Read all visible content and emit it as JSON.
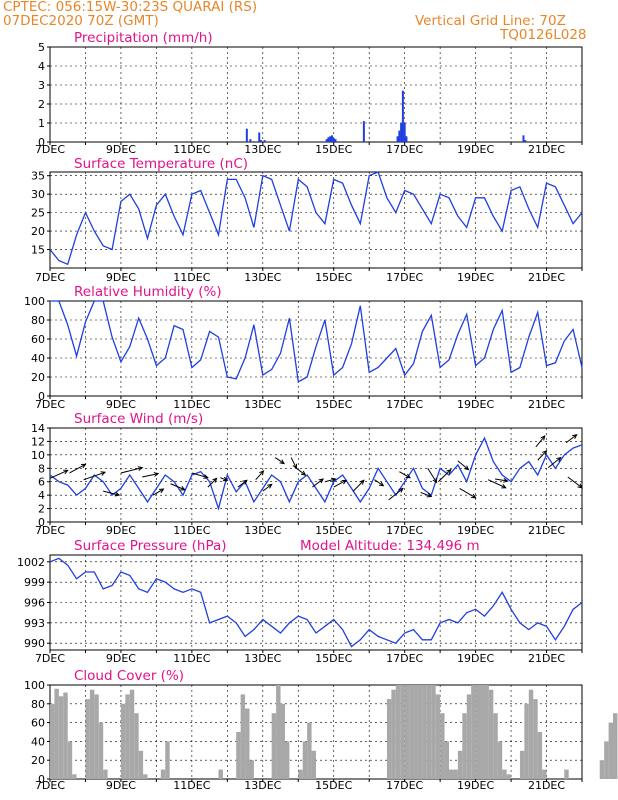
{
  "header": {
    "station": "CPTEC:  056:15W-30:23S  QUARAI (RS)",
    "run": "07DEC2020 70Z (GMT)",
    "grid": "Vertical Grid Line: 70Z",
    "code": "TQ0126L028"
  },
  "colors": {
    "header": "#e8862a",
    "title": "#e0148c",
    "line": "#1f3fe0",
    "cloud": "#a8a8a8",
    "arrow": "#000000"
  },
  "x_tick_labels": [
    "7DEC",
    "9DEC",
    "11DEC",
    "13DEC",
    "15DEC",
    "17DEC",
    "19DEC",
    "21DEC"
  ],
  "chart_data": [
    {
      "type": "bar",
      "title": "Precipitation (mm/h)",
      "yticks": [
        0,
        1,
        2,
        3,
        4,
        5
      ],
      "ylim": [
        0,
        5
      ],
      "x_unit": "days since 7DEC 00Z",
      "xlim": [
        0,
        15
      ],
      "bars": [
        {
          "x": 5.55,
          "y": 0.7
        },
        {
          "x": 5.65,
          "y": 0.15
        },
        {
          "x": 5.9,
          "y": 0.5
        },
        {
          "x": 5.95,
          "y": 0.1
        },
        {
          "x": 6.05,
          "y": 0.1
        },
        {
          "x": 7.8,
          "y": 0.15
        },
        {
          "x": 7.85,
          "y": 0.25
        },
        {
          "x": 7.9,
          "y": 0.3
        },
        {
          "x": 7.95,
          "y": 0.35
        },
        {
          "x": 8.0,
          "y": 0.2
        },
        {
          "x": 8.05,
          "y": 0.15
        },
        {
          "x": 8.85,
          "y": 1.1
        },
        {
          "x": 9.8,
          "y": 0.3
        },
        {
          "x": 9.85,
          "y": 0.6
        },
        {
          "x": 9.9,
          "y": 1.0
        },
        {
          "x": 9.95,
          "y": 2.7
        },
        {
          "x": 10.0,
          "y": 1.0
        },
        {
          "x": 10.05,
          "y": 0.3
        },
        {
          "x": 13.35,
          "y": 0.35
        },
        {
          "x": 13.4,
          "y": 0.1
        }
      ]
    },
    {
      "type": "line",
      "title": "Surface Temperature (nC)",
      "yticks": [
        15,
        20,
        25,
        30,
        35
      ],
      "ylim": [
        10,
        36
      ],
      "x": [
        0,
        0.25,
        0.5,
        0.75,
        1.0,
        1.25,
        1.5,
        1.75,
        2.0,
        2.25,
        2.5,
        2.75,
        3.0,
        3.25,
        3.5,
        3.75,
        4.0,
        4.25,
        4.5,
        4.75,
        5.0,
        5.25,
        5.5,
        5.75,
        6.0,
        6.25,
        6.5,
        6.75,
        7.0,
        7.25,
        7.5,
        7.75,
        8.0,
        8.25,
        8.5,
        8.75,
        9.0,
        9.25,
        9.5,
        9.75,
        10.0,
        10.25,
        10.5,
        10.75,
        11.0,
        11.25,
        11.5,
        11.75,
        12.0,
        12.25,
        12.5,
        12.75,
        13.0,
        13.25,
        13.5,
        13.75,
        14.0,
        14.25,
        14.5,
        14.75,
        15.0
      ],
      "values": [
        15,
        12,
        11,
        19,
        25,
        20,
        16,
        15,
        28,
        30,
        26,
        18,
        27,
        30,
        24,
        19,
        30,
        31,
        25,
        19,
        34,
        34,
        29,
        21,
        35,
        34,
        27,
        20,
        34,
        32,
        25,
        22,
        34,
        33,
        27,
        22,
        35,
        36,
        29,
        25,
        31,
        30,
        26,
        22,
        30,
        29,
        24,
        21,
        29,
        29,
        24,
        20,
        31,
        32,
        26,
        21,
        33,
        32,
        27,
        22,
        25
      ]
    },
    {
      "type": "line",
      "title": "Relative Humidity (%)",
      "yticks": [
        0,
        20,
        40,
        60,
        80,
        100
      ],
      "ylim": [
        0,
        100
      ],
      "x": [
        0,
        0.25,
        0.5,
        0.75,
        1.0,
        1.25,
        1.5,
        1.75,
        2.0,
        2.25,
        2.5,
        2.75,
        3.0,
        3.25,
        3.5,
        3.75,
        4.0,
        4.25,
        4.5,
        4.75,
        5.0,
        5.25,
        5.5,
        5.75,
        6.0,
        6.25,
        6.5,
        6.75,
        7.0,
        7.25,
        7.5,
        7.75,
        8.0,
        8.25,
        8.5,
        8.75,
        9.0,
        9.25,
        9.5,
        9.75,
        10.0,
        10.25,
        10.5,
        10.75,
        11.0,
        11.25,
        11.5,
        11.75,
        12.0,
        12.25,
        12.5,
        12.75,
        13.0,
        13.25,
        13.5,
        13.75,
        14.0,
        14.25,
        14.5,
        14.75,
        15.0
      ],
      "values": [
        100,
        100,
        75,
        42,
        78,
        100,
        100,
        62,
        36,
        52,
        82,
        60,
        32,
        40,
        74,
        70,
        30,
        38,
        68,
        62,
        20,
        18,
        40,
        75,
        22,
        28,
        45,
        82,
        15,
        20,
        52,
        80,
        22,
        30,
        55,
        95,
        25,
        30,
        40,
        50,
        22,
        34,
        68,
        85,
        30,
        38,
        65,
        86,
        32,
        40,
        70,
        90,
        25,
        30,
        62,
        88,
        32,
        35,
        58,
        70,
        30
      ]
    },
    {
      "type": "line",
      "title": "Surface Wind (m/s)",
      "yticks": [
        0,
        2,
        4,
        6,
        8,
        10,
        12,
        14
      ],
      "ylim": [
        0,
        14
      ],
      "x": [
        0,
        0.25,
        0.5,
        0.75,
        1.0,
        1.25,
        1.5,
        1.75,
        2.0,
        2.25,
        2.5,
        2.75,
        3.0,
        3.25,
        3.5,
        3.75,
        4.0,
        4.25,
        4.5,
        4.75,
        5.0,
        5.25,
        5.5,
        5.75,
        6.0,
        6.25,
        6.5,
        6.75,
        7.0,
        7.25,
        7.5,
        7.75,
        8.0,
        8.25,
        8.5,
        8.75,
        9.0,
        9.25,
        9.5,
        9.75,
        10.0,
        10.25,
        10.5,
        10.75,
        11.0,
        11.25,
        11.5,
        11.75,
        12.0,
        12.25,
        12.5,
        12.75,
        13.0,
        13.25,
        13.5,
        13.75,
        14.0,
        14.25,
        14.5,
        14.75,
        15.0
      ],
      "values": [
        7,
        6,
        5.5,
        4,
        5,
        7,
        6,
        4,
        5,
        7,
        5,
        3,
        5,
        7,
        6,
        4,
        7,
        7.5,
        6,
        2,
        7,
        4.5,
        6,
        3,
        5,
        7,
        6,
        3,
        6,
        7,
        5,
        3,
        6,
        7,
        5,
        3,
        5,
        8,
        6,
        4,
        6,
        8,
        5,
        4,
        8,
        7,
        8.5,
        6,
        10,
        12.5,
        9,
        7,
        6,
        8,
        9,
        7,
        10,
        8,
        10,
        11,
        11.5
      ],
      "arrows": [
        {
          "x": 0.0,
          "y": 6.5,
          "dx": 0.5,
          "dy": 1.2
        },
        {
          "x": 0.55,
          "y": 7.3,
          "dx": 0.45,
          "dy": 1.3
        },
        {
          "x": 0.95,
          "y": 6.3,
          "dx": 0.6,
          "dy": 1.1
        },
        {
          "x": 1.5,
          "y": 4.6,
          "dx": 0.45,
          "dy": -0.6
        },
        {
          "x": 2.0,
          "y": 7.3,
          "dx": 0.6,
          "dy": 0.8
        },
        {
          "x": 2.6,
          "y": 6.7,
          "dx": 0.45,
          "dy": 0.5
        },
        {
          "x": 2.9,
          "y": 4.0,
          "dx": 0.3,
          "dy": 0.9
        },
        {
          "x": 3.4,
          "y": 5.7,
          "dx": 0.4,
          "dy": -0.9
        },
        {
          "x": 4.0,
          "y": 7.3,
          "dx": 0.45,
          "dy": -0.7
        },
        {
          "x": 4.45,
          "y": 5.2,
          "dx": 0.25,
          "dy": 1.3
        },
        {
          "x": 4.8,
          "y": 6.6,
          "dx": 0.2,
          "dy": -0.4
        },
        {
          "x": 5.3,
          "y": 5.2,
          "dx": 0.25,
          "dy": 1.0
        },
        {
          "x": 5.8,
          "y": 6.3,
          "dx": 0.22,
          "dy": 1.3
        },
        {
          "x": 6.0,
          "y": 4.6,
          "dx": 0.25,
          "dy": 1.0
        },
        {
          "x": 6.35,
          "y": 9.6,
          "dx": 0.25,
          "dy": -0.9
        },
        {
          "x": 6.8,
          "y": 9.6,
          "dx": 0.15,
          "dy": -1.6
        },
        {
          "x": 6.9,
          "y": 8.2,
          "dx": 0.3,
          "dy": -1.2
        },
        {
          "x": 7.4,
          "y": 5.2,
          "dx": 0.3,
          "dy": 1.2
        },
        {
          "x": 7.75,
          "y": 6.0,
          "dx": 0.3,
          "dy": 0.4
        },
        {
          "x": 8.0,
          "y": 5.2,
          "dx": 0.35,
          "dy": 1.0
        },
        {
          "x": 8.55,
          "y": 4.6,
          "dx": 0.3,
          "dy": 1.6
        },
        {
          "x": 9.15,
          "y": 6.3,
          "dx": 0.25,
          "dy": -0.9
        },
        {
          "x": 9.55,
          "y": 3.3,
          "dx": 0.4,
          "dy": 1.7
        },
        {
          "x": 9.85,
          "y": 7.5,
          "dx": 0.3,
          "dy": -0.9
        },
        {
          "x": 10.45,
          "y": 4.4,
          "dx": 0.3,
          "dy": -0.6
        },
        {
          "x": 10.65,
          "y": 8.0,
          "dx": 0.25,
          "dy": -2.1
        },
        {
          "x": 10.95,
          "y": 6.0,
          "dx": 0.35,
          "dy": 1.8
        },
        {
          "x": 11.5,
          "y": 9.1,
          "dx": 0.3,
          "dy": -1.3
        },
        {
          "x": 11.55,
          "y": 5.0,
          "dx": 0.45,
          "dy": -1.4
        },
        {
          "x": 12.35,
          "y": 6.3,
          "dx": 0.5,
          "dy": -1.2
        },
        {
          "x": 12.55,
          "y": 6.4,
          "dx": 0.35,
          "dy": -0.3
        },
        {
          "x": 13.7,
          "y": 11.2,
          "dx": 0.25,
          "dy": 1.6
        },
        {
          "x": 13.75,
          "y": 9.2,
          "dx": 0.25,
          "dy": 1.4
        },
        {
          "x": 14.05,
          "y": 8.1,
          "dx": 0.35,
          "dy": 1.5
        },
        {
          "x": 14.55,
          "y": 11.8,
          "dx": 0.3,
          "dy": 1.2
        },
        {
          "x": 14.6,
          "y": 6.7,
          "dx": 0.4,
          "dy": -1.6
        }
      ]
    },
    {
      "type": "line",
      "title": "Surface Pressure (hPa)",
      "extra_label": "Model Altitude: 134.496 m",
      "yticks": [
        990,
        993,
        996,
        999,
        1002
      ],
      "ylim": [
        989,
        1003
      ],
      "x": [
        0,
        0.25,
        0.5,
        0.75,
        1.0,
        1.25,
        1.5,
        1.75,
        2.0,
        2.25,
        2.5,
        2.75,
        3.0,
        3.25,
        3.5,
        3.75,
        4.0,
        4.25,
        4.5,
        4.75,
        5.0,
        5.25,
        5.5,
        5.75,
        6.0,
        6.25,
        6.5,
        6.75,
        7.0,
        7.25,
        7.5,
        7.75,
        8.0,
        8.25,
        8.5,
        8.75,
        9.0,
        9.25,
        9.5,
        9.75,
        10.0,
        10.25,
        10.5,
        10.75,
        11.0,
        11.25,
        11.5,
        11.75,
        12.0,
        12.25,
        12.5,
        12.75,
        13.0,
        13.25,
        13.5,
        13.75,
        14.0,
        14.25,
        14.5,
        14.75,
        15.0
      ],
      "values": [
        1002,
        1002.5,
        1001.5,
        999.5,
        1000.5,
        1000.5,
        998,
        998.5,
        1000.5,
        1000,
        998,
        997.5,
        999.5,
        999,
        998,
        997.5,
        998,
        997.5,
        993,
        993.5,
        994,
        993,
        991,
        992,
        993.5,
        992.5,
        991.5,
        993,
        994,
        993.5,
        991.5,
        992.5,
        993.5,
        992,
        989.5,
        990.5,
        992,
        991,
        990.5,
        990,
        991.5,
        992,
        990.5,
        990.5,
        993,
        993.5,
        993,
        994.5,
        995,
        994,
        995.5,
        997.5,
        995,
        993,
        992,
        993,
        992.5,
        990.5,
        992.5,
        995,
        996
      ]
    },
    {
      "type": "bar",
      "title": "Cloud Cover (%)",
      "yticks": [
        0,
        20,
        40,
        60,
        80,
        100
      ],
      "ylim": [
        0,
        100
      ],
      "x_step": 0.125,
      "values": [
        80,
        96,
        88,
        92,
        40,
        5,
        0,
        0,
        85,
        95,
        90,
        60,
        10,
        0,
        0,
        0,
        80,
        90,
        95,
        70,
        30,
        5,
        0,
        0,
        0,
        10,
        40,
        0,
        0,
        0,
        0,
        0,
        0,
        0,
        0,
        0,
        0,
        0,
        10,
        0,
        0,
        0,
        50,
        90,
        75,
        20,
        0,
        0,
        0,
        0,
        70,
        100,
        80,
        40,
        0,
        0,
        10,
        40,
        60,
        30,
        0,
        0,
        0,
        0,
        0,
        0,
        0,
        0,
        0,
        0,
        0,
        0,
        0,
        0,
        0,
        0,
        85,
        95,
        100,
        100,
        100,
        100,
        100,
        100,
        100,
        100,
        100,
        90,
        70,
        40,
        10,
        10,
        30,
        70,
        90,
        100,
        100,
        100,
        100,
        95,
        70,
        40,
        10,
        5,
        0,
        0,
        30,
        80,
        95,
        85,
        50,
        10,
        0,
        0,
        0,
        0,
        10,
        0,
        0,
        0,
        0,
        0,
        0,
        0,
        20,
        40,
        60,
        70
      ]
    }
  ]
}
